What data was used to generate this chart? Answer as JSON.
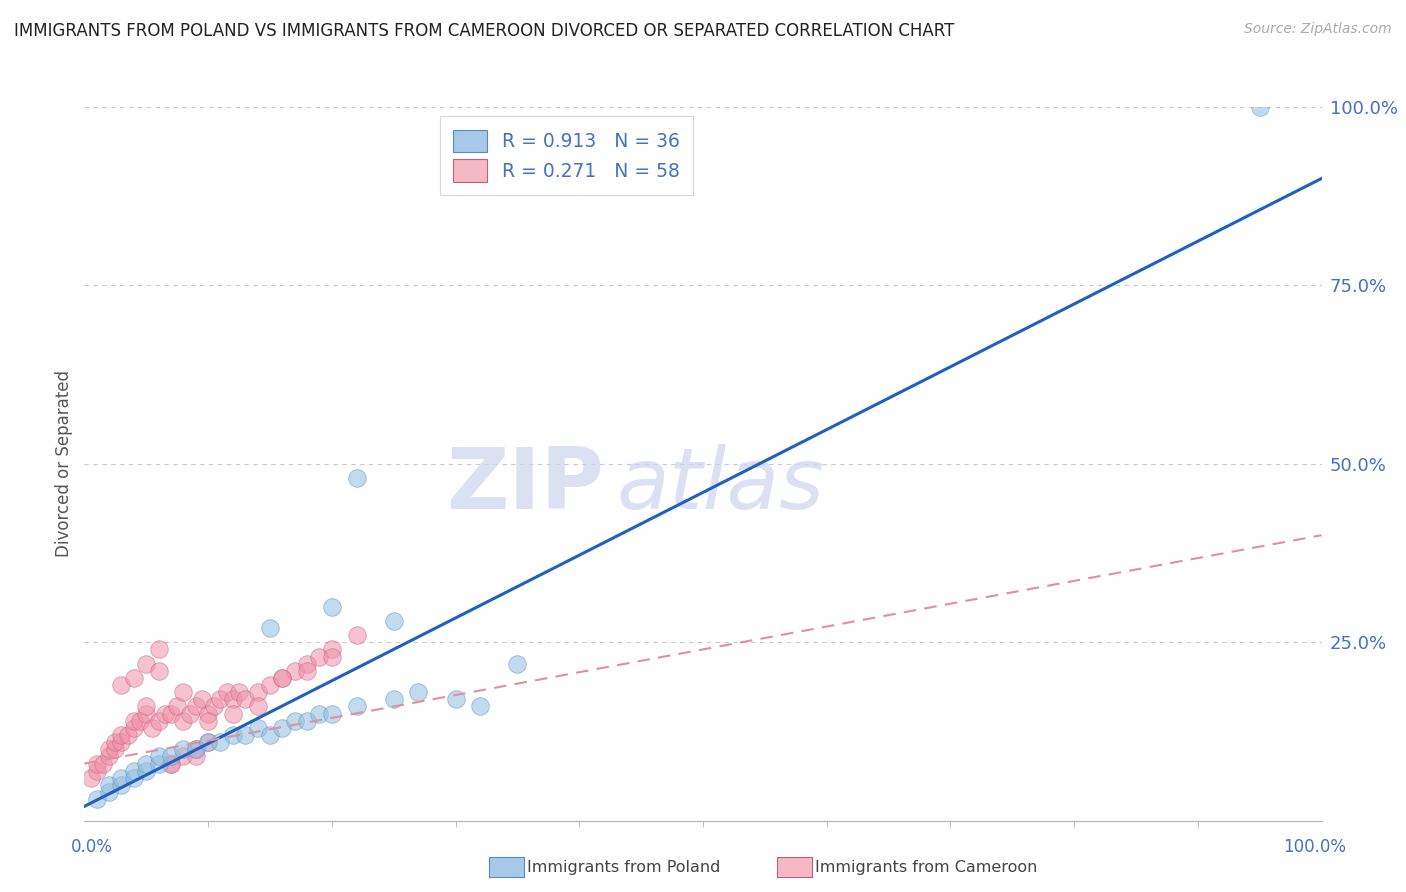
{
  "title": "IMMIGRANTS FROM POLAND VS IMMIGRANTS FROM CAMEROON DIVORCED OR SEPARATED CORRELATION CHART",
  "source_text": "Source: ZipAtlas.com",
  "ylabel": "Divorced or Separated",
  "watermark_zip": "ZIP",
  "watermark_atlas": "atlas",
  "legend_label_poland": "R = 0.913   N = 36",
  "legend_label_cameroon": "R = 0.271   N = 58",
  "legend_color_poland": "#a8c8ea",
  "legend_color_cameroon": "#f5b8c4",
  "poland_scatter_color": "#90bde0",
  "cameroon_scatter_color": "#f090a8",
  "poland_line_color": "#2060c0",
  "cameroon_line_color": "#e090a0",
  "poland_edge_color": "#5090c0",
  "cameroon_edge_color": "#c06080",
  "poland_line_slope": 0.88,
  "poland_line_intercept": 0.02,
  "cameroon_line_slope": 0.32,
  "cameroon_line_intercept": 0.08,
  "background_color": "#ffffff",
  "grid_color": "#c8c8d8",
  "title_fontsize": 12,
  "tick_color": "#4472c4",
  "ytick_positions": [
    0.25,
    0.5,
    0.75,
    1.0
  ],
  "ytick_labels": [
    "25.0%",
    "50.0%",
    "75.0%",
    "100.0%"
  ],
  "xlim": [
    0.0,
    1.0
  ],
  "ylim": [
    0.0,
    1.0
  ],
  "poland_scatter_x": [
    0.01,
    0.02,
    0.02,
    0.03,
    0.03,
    0.04,
    0.04,
    0.05,
    0.05,
    0.06,
    0.06,
    0.07,
    0.08,
    0.09,
    0.1,
    0.11,
    0.12,
    0.13,
    0.14,
    0.15,
    0.16,
    0.17,
    0.18,
    0.19,
    0.2,
    0.22,
    0.25,
    0.27,
    0.3,
    0.32,
    0.2,
    0.25,
    0.35,
    0.15,
    0.22,
    0.95
  ],
  "poland_scatter_y": [
    0.03,
    0.04,
    0.05,
    0.05,
    0.06,
    0.06,
    0.07,
    0.07,
    0.08,
    0.08,
    0.09,
    0.09,
    0.1,
    0.1,
    0.11,
    0.11,
    0.12,
    0.12,
    0.13,
    0.12,
    0.13,
    0.14,
    0.14,
    0.15,
    0.15,
    0.16,
    0.17,
    0.18,
    0.17,
    0.16,
    0.3,
    0.28,
    0.22,
    0.27,
    0.48,
    1.0
  ],
  "cameroon_scatter_x": [
    0.005,
    0.01,
    0.01,
    0.015,
    0.02,
    0.02,
    0.025,
    0.025,
    0.03,
    0.03,
    0.035,
    0.04,
    0.04,
    0.045,
    0.05,
    0.05,
    0.055,
    0.06,
    0.065,
    0.07,
    0.075,
    0.08,
    0.085,
    0.09,
    0.095,
    0.1,
    0.105,
    0.11,
    0.115,
    0.12,
    0.125,
    0.13,
    0.14,
    0.15,
    0.16,
    0.17,
    0.18,
    0.19,
    0.2,
    0.22,
    0.03,
    0.04,
    0.05,
    0.06,
    0.07,
    0.08,
    0.09,
    0.1,
    0.06,
    0.08,
    0.1,
    0.12,
    0.14,
    0.16,
    0.18,
    0.2,
    0.07,
    0.09
  ],
  "cameroon_scatter_y": [
    0.06,
    0.07,
    0.08,
    0.08,
    0.09,
    0.1,
    0.1,
    0.11,
    0.11,
    0.12,
    0.12,
    0.13,
    0.14,
    0.14,
    0.15,
    0.16,
    0.13,
    0.14,
    0.15,
    0.15,
    0.16,
    0.14,
    0.15,
    0.16,
    0.17,
    0.15,
    0.16,
    0.17,
    0.18,
    0.17,
    0.18,
    0.17,
    0.18,
    0.19,
    0.2,
    0.21,
    0.22,
    0.23,
    0.24,
    0.26,
    0.19,
    0.2,
    0.22,
    0.24,
    0.08,
    0.09,
    0.1,
    0.11,
    0.21,
    0.18,
    0.14,
    0.15,
    0.16,
    0.2,
    0.21,
    0.23,
    0.08,
    0.09
  ]
}
